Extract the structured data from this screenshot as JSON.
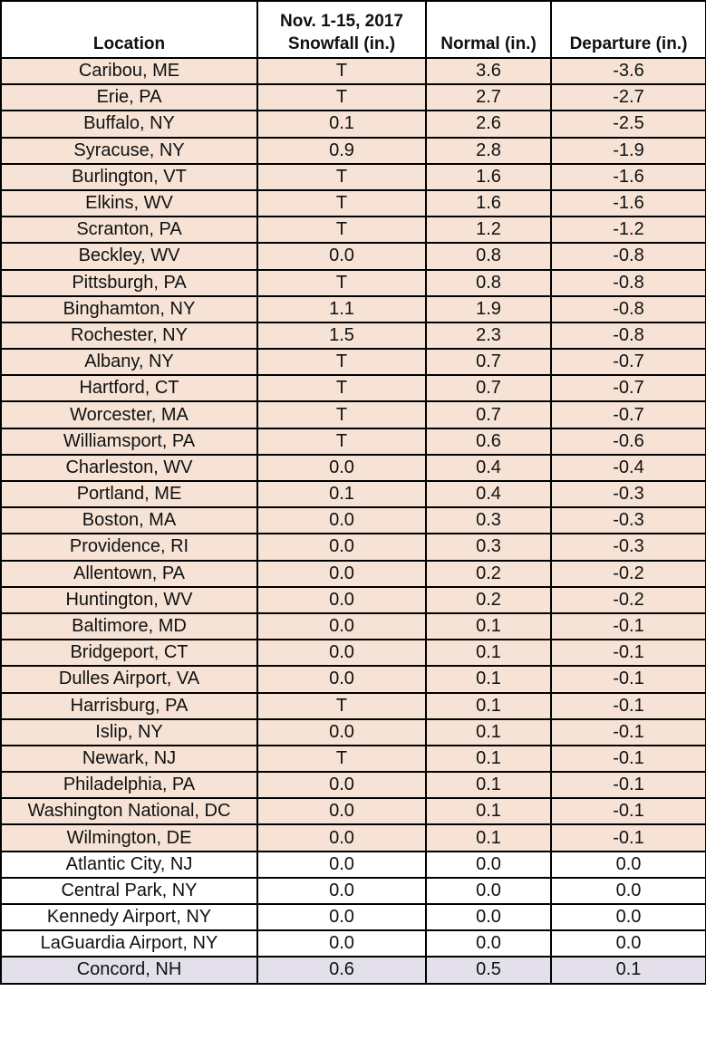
{
  "headers": {
    "location": "Location",
    "snowfall_line1": "Nov. 1-15, 2017",
    "snowfall_line2": "Snowfall (in.)",
    "normal": "Normal (in.)",
    "departure": "Departure (in.)"
  },
  "colors": {
    "deficit": "#f6e3d6",
    "normal": "#ffffff",
    "surplus": "#e3e0ec"
  },
  "rows": [
    {
      "location": "Caribou, ME",
      "snowfall": "T",
      "normal": "3.6",
      "departure": "-3.6",
      "category": "deficit"
    },
    {
      "location": "Erie, PA",
      "snowfall": "T",
      "normal": "2.7",
      "departure": "-2.7",
      "category": "deficit"
    },
    {
      "location": "Buffalo, NY",
      "snowfall": "0.1",
      "normal": "2.6",
      "departure": "-2.5",
      "category": "deficit"
    },
    {
      "location": "Syracuse, NY",
      "snowfall": "0.9",
      "normal": "2.8",
      "departure": "-1.9",
      "category": "deficit"
    },
    {
      "location": "Burlington, VT",
      "snowfall": "T",
      "normal": "1.6",
      "departure": "-1.6",
      "category": "deficit"
    },
    {
      "location": "Elkins, WV",
      "snowfall": "T",
      "normal": "1.6",
      "departure": "-1.6",
      "category": "deficit"
    },
    {
      "location": "Scranton, PA",
      "snowfall": "T",
      "normal": "1.2",
      "departure": "-1.2",
      "category": "deficit"
    },
    {
      "location": "Beckley, WV",
      "snowfall": "0.0",
      "normal": "0.8",
      "departure": "-0.8",
      "category": "deficit"
    },
    {
      "location": "Pittsburgh, PA",
      "snowfall": "T",
      "normal": "0.8",
      "departure": "-0.8",
      "category": "deficit"
    },
    {
      "location": "Binghamton, NY",
      "snowfall": "1.1",
      "normal": "1.9",
      "departure": "-0.8",
      "category": "deficit"
    },
    {
      "location": "Rochester, NY",
      "snowfall": "1.5",
      "normal": "2.3",
      "departure": "-0.8",
      "category": "deficit"
    },
    {
      "location": "Albany, NY",
      "snowfall": "T",
      "normal": "0.7",
      "departure": "-0.7",
      "category": "deficit"
    },
    {
      "location": "Hartford, CT",
      "snowfall": "T",
      "normal": "0.7",
      "departure": "-0.7",
      "category": "deficit"
    },
    {
      "location": "Worcester, MA",
      "snowfall": "T",
      "normal": "0.7",
      "departure": "-0.7",
      "category": "deficit"
    },
    {
      "location": "Williamsport, PA",
      "snowfall": "T",
      "normal": "0.6",
      "departure": "-0.6",
      "category": "deficit"
    },
    {
      "location": "Charleston, WV",
      "snowfall": "0.0",
      "normal": "0.4",
      "departure": "-0.4",
      "category": "deficit"
    },
    {
      "location": "Portland, ME",
      "snowfall": "0.1",
      "normal": "0.4",
      "departure": "-0.3",
      "category": "deficit"
    },
    {
      "location": "Boston, MA",
      "snowfall": "0.0",
      "normal": "0.3",
      "departure": "-0.3",
      "category": "deficit"
    },
    {
      "location": "Providence, RI",
      "snowfall": "0.0",
      "normal": "0.3",
      "departure": "-0.3",
      "category": "deficit"
    },
    {
      "location": "Allentown, PA",
      "snowfall": "0.0",
      "normal": "0.2",
      "departure": "-0.2",
      "category": "deficit"
    },
    {
      "location": "Huntington, WV",
      "snowfall": "0.0",
      "normal": "0.2",
      "departure": "-0.2",
      "category": "deficit"
    },
    {
      "location": "Baltimore, MD",
      "snowfall": "0.0",
      "normal": "0.1",
      "departure": "-0.1",
      "category": "deficit"
    },
    {
      "location": "Bridgeport, CT",
      "snowfall": "0.0",
      "normal": "0.1",
      "departure": "-0.1",
      "category": "deficit"
    },
    {
      "location": "Dulles Airport, VA",
      "snowfall": "0.0",
      "normal": "0.1",
      "departure": "-0.1",
      "category": "deficit"
    },
    {
      "location": "Harrisburg, PA",
      "snowfall": "T",
      "normal": "0.1",
      "departure": "-0.1",
      "category": "deficit"
    },
    {
      "location": "Islip, NY",
      "snowfall": "0.0",
      "normal": "0.1",
      "departure": "-0.1",
      "category": "deficit"
    },
    {
      "location": "Newark, NJ",
      "snowfall": "T",
      "normal": "0.1",
      "departure": "-0.1",
      "category": "deficit"
    },
    {
      "location": "Philadelphia, PA",
      "snowfall": "0.0",
      "normal": "0.1",
      "departure": "-0.1",
      "category": "deficit"
    },
    {
      "location": "Washington National, DC",
      "snowfall": "0.0",
      "normal": "0.1",
      "departure": "-0.1",
      "category": "deficit"
    },
    {
      "location": "Wilmington, DE",
      "snowfall": "0.0",
      "normal": "0.1",
      "departure": "-0.1",
      "category": "deficit"
    },
    {
      "location": "Atlantic City, NJ",
      "snowfall": "0.0",
      "normal": "0.0",
      "departure": "0.0",
      "category": "normal"
    },
    {
      "location": "Central Park, NY",
      "snowfall": "0.0",
      "normal": "0.0",
      "departure": "0.0",
      "category": "normal"
    },
    {
      "location": "Kennedy Airport, NY",
      "snowfall": "0.0",
      "normal": "0.0",
      "departure": "0.0",
      "category": "normal"
    },
    {
      "location": "LaGuardia Airport, NY",
      "snowfall": "0.0",
      "normal": "0.0",
      "departure": "0.0",
      "category": "normal"
    },
    {
      "location": "Concord, NH",
      "snowfall": "0.6",
      "normal": "0.5",
      "departure": "0.1",
      "category": "surplus"
    }
  ]
}
